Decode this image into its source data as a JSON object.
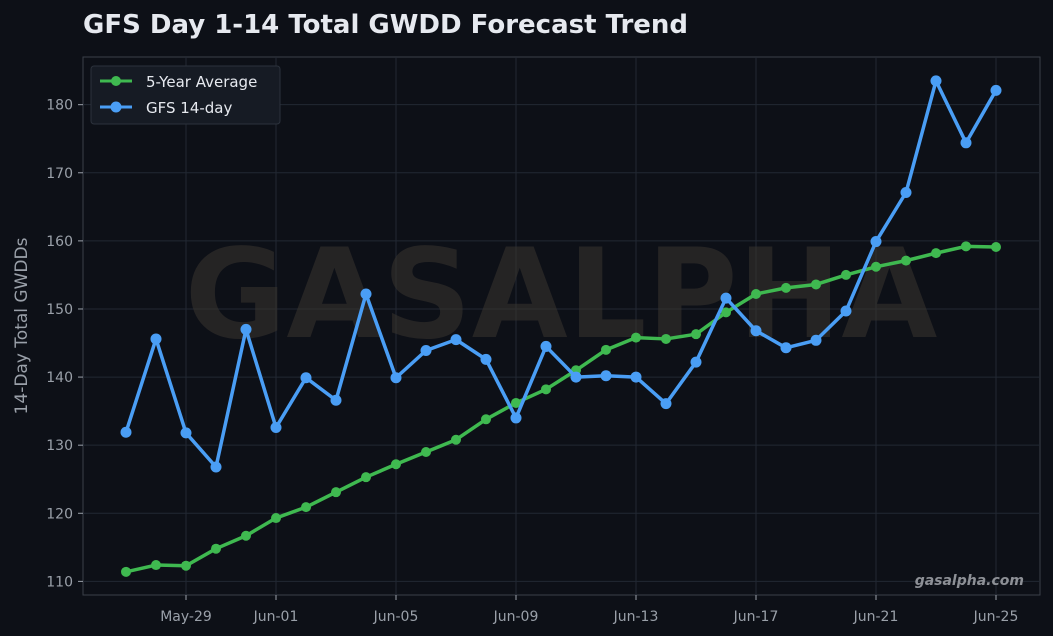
{
  "chart_data": {
    "type": "line",
    "title": "GFS Day 1-14 Total GWDD Forecast Trend",
    "ylabel": "14-Day Total GWDDs",
    "xlabel": "",
    "ylim": [
      108,
      187
    ],
    "yticks": [
      110,
      120,
      130,
      140,
      150,
      160,
      170,
      180
    ],
    "x": [
      "May-27",
      "May-28",
      "May-29",
      "May-30",
      "May-31",
      "Jun-01",
      "Jun-02",
      "Jun-03",
      "Jun-04",
      "Jun-05",
      "Jun-06",
      "Jun-07",
      "Jun-08",
      "Jun-09",
      "Jun-10",
      "Jun-11",
      "Jun-12",
      "Jun-13",
      "Jun-14",
      "Jun-15",
      "Jun-16",
      "Jun-17",
      "Jun-18",
      "Jun-19",
      "Jun-20",
      "Jun-21",
      "Jun-22",
      "Jun-23",
      "Jun-24",
      "Jun-25"
    ],
    "xticks": [
      "May-29",
      "Jun-01",
      "Jun-05",
      "Jun-09",
      "Jun-13",
      "Jun-17",
      "Jun-21",
      "Jun-25"
    ],
    "series": [
      {
        "name": "5-Year Average",
        "color": "#3fb950",
        "values": [
          111.4,
          112.4,
          112.3,
          114.8,
          116.7,
          119.3,
          120.9,
          123.1,
          125.3,
          127.2,
          129.0,
          130.8,
          133.8,
          136.2,
          138.2,
          141.0,
          144.0,
          145.8,
          145.6,
          146.3,
          149.5,
          152.2,
          153.1,
          153.6,
          155.0,
          156.2,
          157.1,
          158.2,
          159.2,
          159.1
        ]
      },
      {
        "name": "GFS 14-day",
        "color": "#4a9ef5",
        "values": [
          131.9,
          145.6,
          131.8,
          126.8,
          147.0,
          132.6,
          139.9,
          136.6,
          152.2,
          139.9,
          143.9,
          145.5,
          142.6,
          134.0,
          144.5,
          140.0,
          140.2,
          140.0,
          136.1,
          142.2,
          151.6,
          146.8,
          144.3,
          145.4,
          149.7,
          159.9,
          167.1,
          183.5,
          174.4,
          182.1
        ]
      }
    ],
    "legend_position": "top-left",
    "grid": true,
    "watermark": "GASALPHA",
    "credit": "gasalpha.com"
  },
  "colors": {
    "background": "#0d1017",
    "grid": "#222833",
    "axis": "#3a404a"
  }
}
